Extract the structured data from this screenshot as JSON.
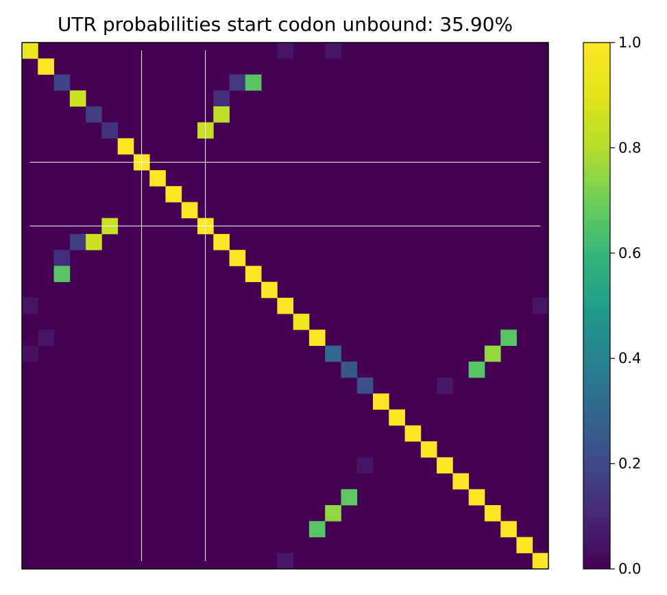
{
  "chart_data": {
    "type": "heatmap",
    "title": "UTR probabilities start codon unbound: 35.90%",
    "xlabel": "",
    "ylabel": "",
    "n": 33,
    "diagonal": [
      0.93,
      1,
      0.18,
      0.85,
      0.16,
      0.14,
      1,
      1,
      1,
      1,
      1,
      1,
      1,
      1,
      1,
      1,
      1,
      0.95,
      1,
      0.3,
      0.24,
      0.22,
      1,
      1,
      1,
      1,
      1,
      1,
      1,
      1,
      1,
      1,
      1
    ],
    "off_diagonal": [
      {
        "row": 2,
        "col": 13,
        "value": 0.15
      },
      {
        "row": 2,
        "col": 14,
        "value": 0.66
      },
      {
        "row": 3,
        "col": 12,
        "value": 0.12
      },
      {
        "row": 4,
        "col": 12,
        "value": 0.82
      },
      {
        "row": 5,
        "col": 11,
        "value": 0.84
      },
      {
        "row": 11,
        "col": 5,
        "value": 0.84
      },
      {
        "row": 12,
        "col": 3,
        "value": 0.16
      },
      {
        "row": 12,
        "col": 4,
        "value": 0.85
      },
      {
        "row": 13,
        "col": 2,
        "value": 0.12
      },
      {
        "row": 14,
        "col": 2,
        "value": 0.66
      },
      {
        "row": 16,
        "col": 0,
        "value": 0.05
      },
      {
        "row": 16,
        "col": 32,
        "value": 0.05
      },
      {
        "row": 18,
        "col": 1,
        "value": 0.05
      },
      {
        "row": 18,
        "col": 30,
        "value": 0.66
      },
      {
        "row": 19,
        "col": 0,
        "value": 0.04
      },
      {
        "row": 19,
        "col": 29,
        "value": 0.75
      },
      {
        "row": 20,
        "col": 28,
        "value": 0.66
      },
      {
        "row": 21,
        "col": 26,
        "value": 0.06
      },
      {
        "row": 26,
        "col": 21,
        "value": 0.05
      },
      {
        "row": 28,
        "col": 20,
        "value": 0.67
      },
      {
        "row": 29,
        "col": 19,
        "value": 0.75
      },
      {
        "row": 30,
        "col": 18,
        "value": 0.66
      },
      {
        "row": 32,
        "col": 16,
        "value": 0.06
      },
      {
        "row": 0,
        "col": 16,
        "value": 0.05
      },
      {
        "row": 0,
        "col": 19,
        "value": 0.05
      }
    ],
    "base_value": 0.0,
    "marker_lines": [
      7.5,
      11.5
    ],
    "colorbar": {
      "min": 0.0,
      "max": 1.0,
      "ticks": [
        "0.0",
        "0.2",
        "0.4",
        "0.6",
        "0.8",
        "1.0"
      ]
    },
    "colormap": "viridis"
  }
}
